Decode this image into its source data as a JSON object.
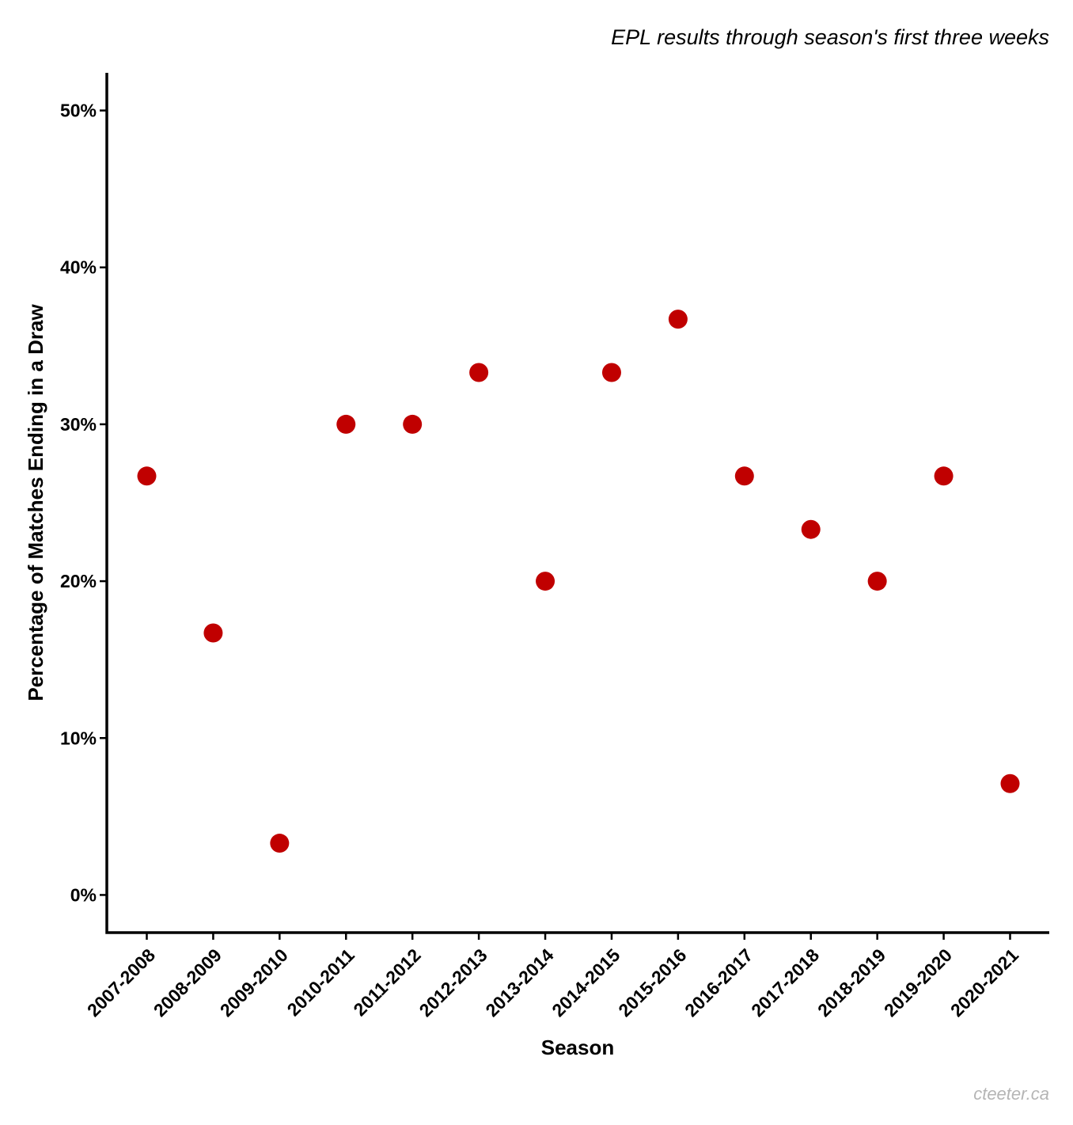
{
  "subtitle": "EPL results through season's first three weeks",
  "caption": "cteeter.ca",
  "chart_data": {
    "type": "scatter",
    "title": "",
    "subtitle": "EPL results through season's first three weeks",
    "xlabel": "Season",
    "ylabel": "Percentage of Matches Ending in a Draw",
    "categories": [
      "2007-2008",
      "2008-2009",
      "2009-2010",
      "2010-2011",
      "2011-2012",
      "2012-2013",
      "2013-2014",
      "2014-2015",
      "2015-2016",
      "2016-2017",
      "2017-2018",
      "2018-2019",
      "2019-2020",
      "2020-2021"
    ],
    "values": [
      26.7,
      16.7,
      3.3,
      30.0,
      30.0,
      33.3,
      20.0,
      33.3,
      36.7,
      26.7,
      23.3,
      20.0,
      26.7,
      7.1
    ],
    "y_unit": "%",
    "ylim": [
      -2.4,
      52.4
    ],
    "yticks": [
      0,
      10,
      20,
      30,
      40,
      50
    ],
    "ytick_labels": [
      "0%",
      "10%",
      "20%",
      "30%",
      "40%",
      "50%"
    ],
    "point_color": "#c00000",
    "grid": false,
    "legend": "none"
  }
}
